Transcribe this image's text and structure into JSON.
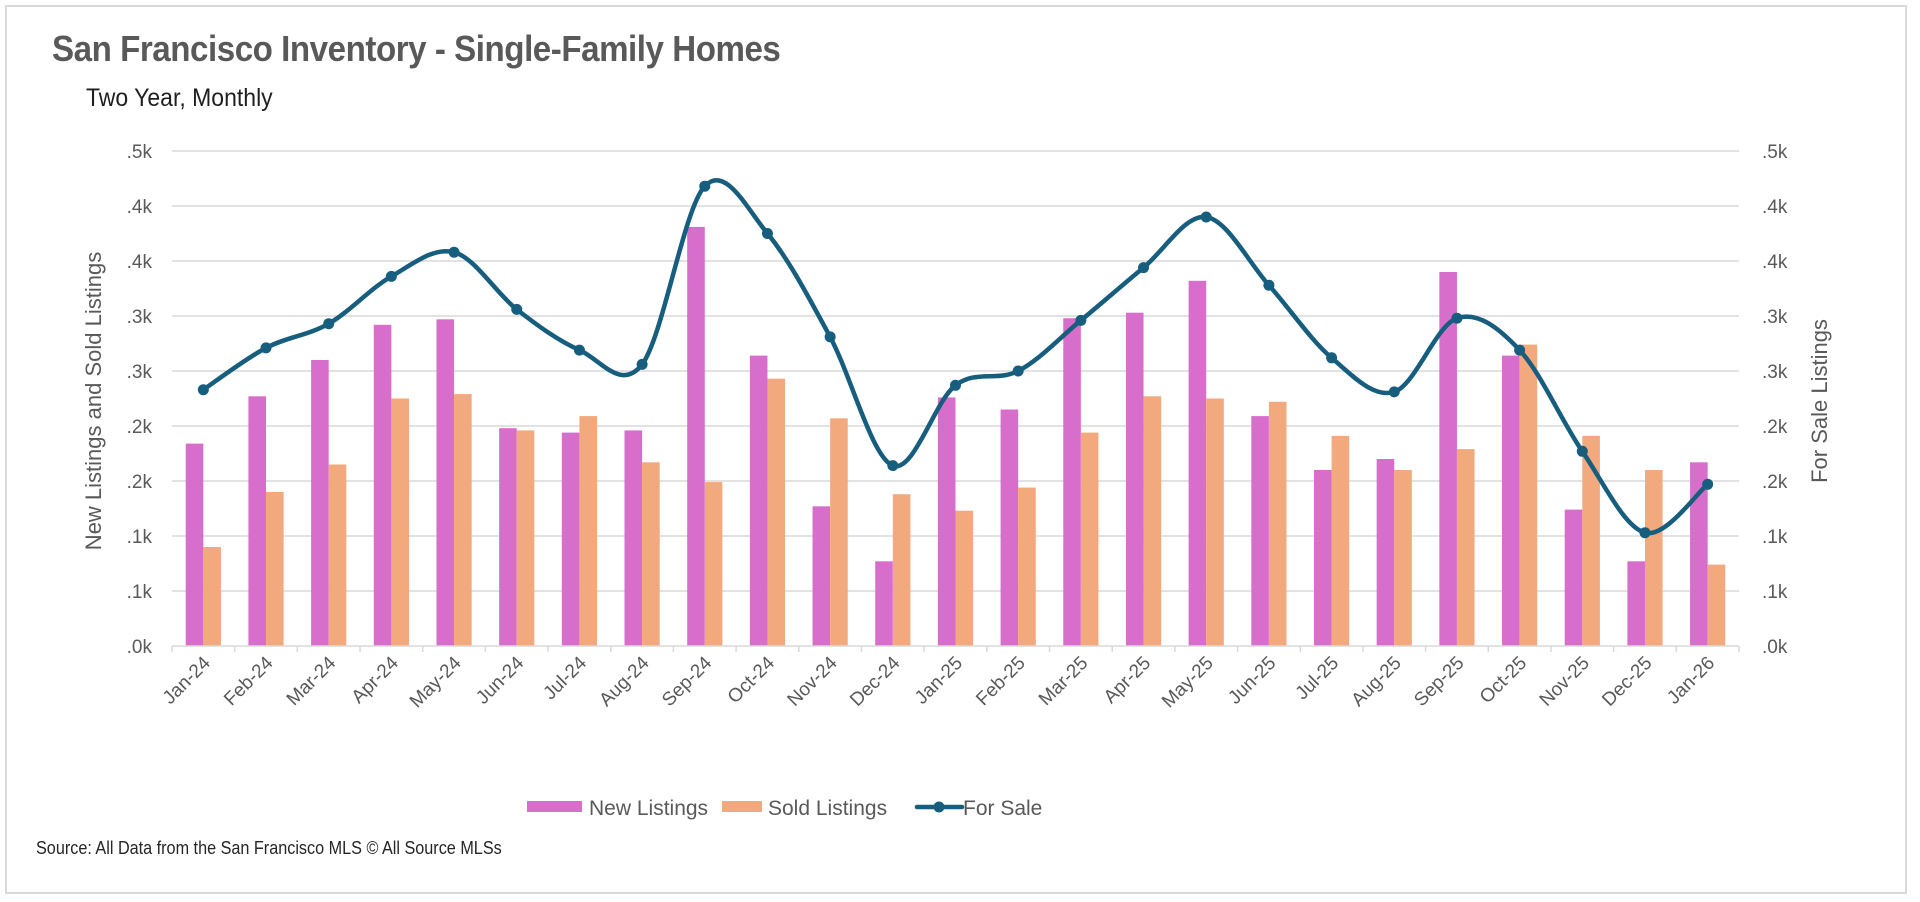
{
  "header": {
    "title": "San Francisco  Inventory - Single-Family Homes",
    "subtitle": "Two Year, Monthly"
  },
  "footer": {
    "source": "Source: All Data from the San Francisco MLS © All Source MLSs"
  },
  "colors": {
    "new_listings": "#D86ECC",
    "sold_listings": "#F2A97E",
    "for_sale": "#175E7E",
    "grid": "#d9d9d9",
    "text": "#595959"
  },
  "chart_data": {
    "type": "bar",
    "title": "San Francisco  Inventory - Single-Family Homes",
    "subtitle": "Two Year, Monthly",
    "xlabel": "",
    "ylabel": "New Listings and Sold Listings",
    "y2label": "For Sale Listings",
    "ylim": [
      0,
      450
    ],
    "y2lim": [
      0,
      450
    ],
    "grid": true,
    "legend_position": "bottom",
    "yticks": [
      0,
      50,
      100,
      150,
      200,
      250,
      300,
      350,
      400,
      450
    ],
    "ytick_labels": [
      ".0k",
      ".1k",
      ".1k",
      ".2k",
      ".2k",
      ".3k",
      ".3k",
      ".4k",
      ".4k",
      ".5k"
    ],
    "y2ticks": [
      0,
      50,
      100,
      150,
      200,
      250,
      300,
      350,
      400,
      450
    ],
    "y2tick_labels": [
      ".0k",
      ".1k",
      ".1k",
      ".2k",
      ".2k",
      ".3k",
      ".3k",
      ".4k",
      ".4k",
      ".5k"
    ],
    "categories": [
      "Jan-24",
      "Feb-24",
      "Mar-24",
      "Apr-24",
      "May-24",
      "Jun-24",
      "Jul-24",
      "Aug-24",
      "Sep-24",
      "Oct-24",
      "Nov-24",
      "Dec-24",
      "Jan-25",
      "Feb-25",
      "Mar-25",
      "Apr-25",
      "May-25",
      "Jun-25",
      "Jul-25",
      "Aug-25",
      "Sep-25",
      "Oct-25",
      "Nov-25",
      "Dec-25",
      "Jan-26"
    ],
    "series": [
      {
        "name": "New Listings",
        "type": "bar",
        "axis": "left",
        "values": [
          184,
          227,
          260,
          292,
          297,
          198,
          194,
          196,
          381,
          264,
          127,
          77,
          226,
          215,
          298,
          303,
          332,
          209,
          160,
          170,
          340,
          264,
          124,
          77,
          167
        ]
      },
      {
        "name": "Sold Listings",
        "type": "bar",
        "axis": "left",
        "values": [
          90,
          140,
          165,
          225,
          229,
          196,
          209,
          167,
          149,
          243,
          207,
          138,
          123,
          144,
          194,
          227,
          225,
          222,
          191,
          160,
          179,
          274,
          191,
          160,
          74
        ]
      },
      {
        "name": "For Sale",
        "type": "line",
        "axis": "right",
        "smooth": true,
        "markers": true,
        "values": [
          233,
          271,
          293,
          336,
          358,
          306,
          269,
          256,
          418,
          375,
          281,
          164,
          237,
          250,
          296,
          344,
          390,
          328,
          262,
          231,
          298,
          269,
          177,
          103,
          147
        ]
      }
    ]
  }
}
